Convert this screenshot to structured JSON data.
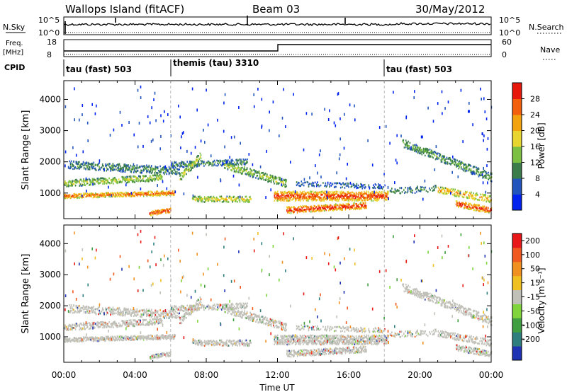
{
  "header": {
    "station": "Wallops Island (fitACF)",
    "beam": "Beam 03",
    "date": "30/May/2012"
  },
  "panels": {
    "nsky_label": "N.Sky",
    "nsky_ticks": [
      "10^5",
      "10^0"
    ],
    "nsearch_label": "N.Search",
    "nsearch_ticks": [
      "10^5",
      "10^0"
    ],
    "freq_label": "Freq.",
    "freq_unit": "[MHz]",
    "freq_ticks": [
      "18",
      "8"
    ],
    "nave_label": "Nave",
    "nave_ticks": [
      "60",
      "0"
    ],
    "cpid_label": "CPID",
    "cpid_segments": [
      "tau (fast) 503",
      "themis (tau) 3310",
      "tau (fast) 503"
    ]
  },
  "colors": {
    "power_scale": [
      "#0022ee",
      "#2255bb",
      "#3b7d4a",
      "#7cc043",
      "#e8d530",
      "#f2a20c",
      "#f2600c",
      "#e8170c"
    ],
    "velocity_scale": [
      "#1e32b4",
      "#2e7e7e",
      "#3f9e3f",
      "#7ed43a",
      "#c0c0b8",
      "#f0c020",
      "#f09020",
      "#f05a20",
      "#e81818"
    ],
    "grey": "#c0c0b8"
  },
  "chart_data": [
    {
      "type": "heatmap",
      "name": "power",
      "xlabel": "",
      "ylabel": "Slant Range [km]",
      "xlim": [
        0,
        24
      ],
      "ylim": [
        180,
        4600
      ],
      "yticks": [
        1000,
        2000,
        3000,
        4000
      ],
      "colorbar_label": "Power [dB]",
      "colorbar_ticks": [
        "28",
        "24",
        "20",
        "16",
        "12",
        "8",
        "4"
      ],
      "colorbar_range": [
        0,
        32
      ],
      "mode_change_lines_h": [
        6,
        18
      ]
    },
    {
      "type": "heatmap",
      "name": "velocity",
      "xlabel": "Time UT",
      "ylabel": "Slant Range [km]",
      "xlim": [
        0,
        24
      ],
      "ylim": [
        180,
        4600
      ],
      "yticks": [
        1000,
        2000,
        3000,
        4000
      ],
      "xticks": [
        "00:00",
        "04:00",
        "08:00",
        "12:00",
        "16:00",
        "20:00",
        "00:00"
      ],
      "colorbar_label": "Velocity [m s⁻¹]",
      "colorbar_ticks": [
        "200",
        "100",
        "50",
        "15",
        "-15",
        "-50",
        "-100",
        "-200"
      ],
      "colorbar_range": [
        -250,
        250
      ],
      "mode_change_lines_h": [
        6,
        18
      ]
    }
  ]
}
